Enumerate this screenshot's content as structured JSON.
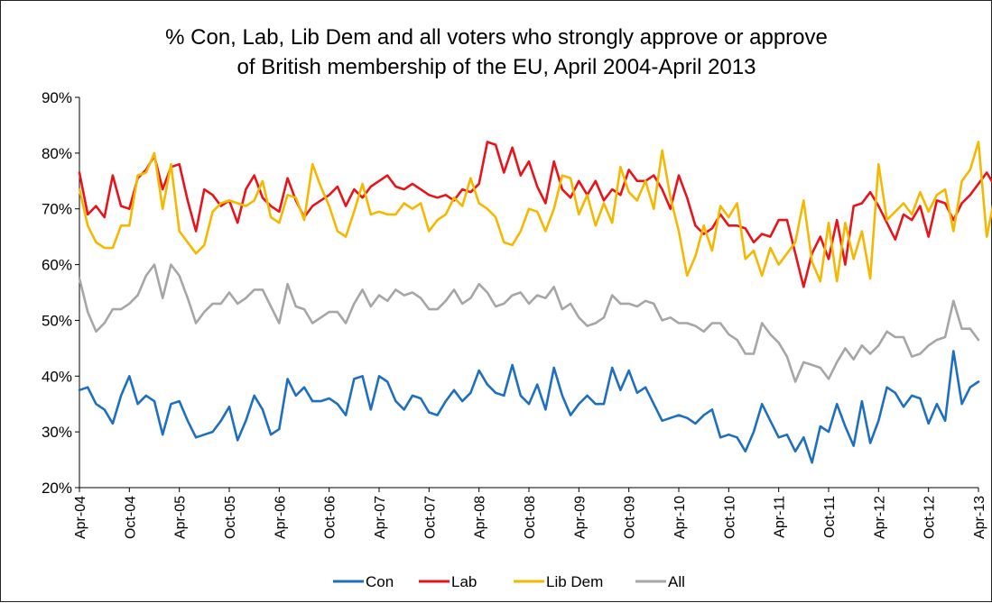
{
  "chart_data": {
    "type": "line",
    "title": [
      "% Con, Lab, Lib Dem and all voters who strongly approve or approve",
      "of British membership of the EU, April 2004-April 2013"
    ],
    "xlabel": "",
    "ylabel": "",
    "ylim": [
      20,
      90
    ],
    "yticks": [
      "20%",
      "30%",
      "40%",
      "50%",
      "60%",
      "70%",
      "80%",
      "90%"
    ],
    "ytick_values": [
      20,
      30,
      40,
      50,
      60,
      70,
      80,
      90
    ],
    "x_range_months": [
      "Apr-04",
      "Apr-13"
    ],
    "xticks": [
      "Apr-04",
      "Oct-04",
      "Apr-05",
      "Oct-05",
      "Apr-06",
      "Oct-06",
      "Apr-07",
      "Oct-07",
      "Apr-08",
      "Oct-08",
      "Apr-09",
      "Oct-09",
      "Apr-10",
      "Oct-10",
      "Apr-11",
      "Oct-11",
      "Apr-12",
      "Oct-12",
      "Apr-13"
    ],
    "grid": false,
    "legend_position": "bottom",
    "series": [
      {
        "name": "Con",
        "color": "#1f6fbf",
        "values": [
          37.5,
          38,
          35,
          34,
          31.5,
          36.5,
          40,
          35,
          36.5,
          35.5,
          29.5,
          35,
          35.5,
          32,
          29,
          29.5,
          30,
          32,
          34.5,
          28.5,
          32,
          36.5,
          34,
          29.5,
          30.5,
          39.5,
          36.5,
          38,
          35.5,
          35.5,
          36,
          35,
          33,
          39.5,
          40,
          34,
          40,
          39,
          35.5,
          34,
          36.5,
          36,
          33.5,
          33,
          35.5,
          37.5,
          35.5,
          37,
          41,
          38.5,
          37,
          36.5,
          42,
          36.5,
          35,
          38.5,
          34,
          41.5,
          36.5,
          33,
          35,
          36.5,
          35,
          35,
          41.5,
          37.5,
          41,
          37,
          38,
          35,
          32,
          32.5,
          33,
          32.5,
          31.5,
          33,
          34,
          29,
          29.5,
          29,
          26.5,
          30,
          35,
          32,
          29,
          29.5,
          26.5,
          29,
          24.5,
          31,
          30,
          35,
          31,
          27.5,
          35.5,
          28,
          32,
          38,
          37,
          34.5,
          36.5,
          36,
          31.5,
          35,
          32,
          44.5,
          35,
          38,
          39
        ]
      },
      {
        "name": "Lab",
        "color": "#e8141c",
        "values": [
          76.5,
          69,
          70.5,
          68.5,
          76,
          70.5,
          70,
          75.5,
          77,
          79.5,
          73.5,
          77.5,
          78,
          71.5,
          66,
          73.5,
          72.5,
          70.5,
          71.5,
          67.5,
          73.5,
          76,
          72,
          70.5,
          69.5,
          75.5,
          71.5,
          68.5,
          70.5,
          71.5,
          72.5,
          74,
          70.5,
          73.5,
          72,
          74,
          75,
          76,
          74,
          73.5,
          74.5,
          73.5,
          72.5,
          72,
          72.5,
          71.5,
          73.5,
          73,
          74.5,
          82,
          81.5,
          76.5,
          81,
          76,
          78.5,
          74,
          71,
          78.5,
          73.5,
          72,
          75,
          72.5,
          75,
          71.5,
          73.5,
          72.5,
          77,
          75,
          75,
          76,
          73.5,
          70,
          76,
          72,
          67,
          65.5,
          66.5,
          69,
          67,
          67,
          66.5,
          64,
          65.5,
          65,
          68,
          68,
          62,
          56,
          62,
          65,
          61,
          68,
          60,
          70.5,
          71,
          73,
          70.5,
          67.5,
          64.5,
          69,
          68,
          70.5,
          65,
          71.5,
          71,
          68,
          71,
          72.5,
          74.5,
          76.5,
          74,
          72
        ]
      },
      {
        "name": "Lib Dem",
        "color": "#f5b800",
        "values": [
          73.5,
          67,
          64,
          63,
          63,
          67,
          67,
          76,
          76.5,
          80,
          70,
          78,
          66,
          64,
          62,
          63.5,
          69.5,
          71,
          71.5,
          71,
          70.5,
          71.5,
          75,
          68.5,
          67.5,
          72.5,
          72,
          68,
          78,
          74,
          70.5,
          66,
          65,
          69.5,
          74.5,
          69,
          69.5,
          69,
          69,
          71,
          70,
          71,
          66,
          68,
          69,
          72,
          70.5,
          75.5,
          71,
          70,
          68.5,
          64,
          63.5,
          66,
          70,
          69.5,
          66,
          70,
          76,
          75.5,
          69,
          72.5,
          67,
          71,
          67.5,
          77.5,
          73,
          71.5,
          75,
          70,
          80.5,
          72,
          66,
          58,
          61.5,
          67,
          62.5,
          70.5,
          68.5,
          71,
          61,
          62.5,
          58,
          63,
          60,
          62,
          64,
          71.5,
          60.5,
          57,
          67.5,
          57,
          67.5,
          61,
          66,
          57.5,
          78,
          68,
          69.5,
          71,
          69,
          73,
          69.5,
          72.5,
          73.5,
          66,
          75,
          77,
          82,
          65,
          72.5
        ]
      },
      {
        "name": "All",
        "color": "#a6a6a6",
        "values": [
          57.5,
          51.5,
          48,
          49.5,
          52,
          52,
          53,
          54.5,
          58,
          60,
          54,
          60,
          58,
          54,
          49.5,
          51.5,
          53,
          53,
          55,
          53,
          54,
          55.5,
          55.5,
          52.5,
          49.5,
          56.5,
          52.5,
          52,
          49.5,
          50.5,
          51.5,
          51.5,
          49.5,
          53,
          55.5,
          52.5,
          54.5,
          53.5,
          55.5,
          54.5,
          55,
          54,
          52,
          52,
          53.5,
          55.5,
          53,
          54,
          56.5,
          55,
          52.5,
          53,
          54.5,
          55,
          53,
          54.5,
          54,
          56,
          52,
          53,
          50.5,
          49,
          49.5,
          50.5,
          54.5,
          53,
          53,
          52.5,
          53.5,
          53,
          50,
          50.5,
          49.5,
          49.5,
          49,
          48,
          49.5,
          49.5,
          47.5,
          46.5,
          44,
          44,
          49.5,
          47.5,
          46,
          43.5,
          39,
          42.5,
          42,
          41.5,
          39.5,
          42.5,
          45,
          43,
          45.5,
          44,
          45.5,
          48,
          47,
          47,
          43.5,
          44,
          45.5,
          46.5,
          47,
          53.5,
          48.5,
          48.5,
          46.5
        ]
      }
    ]
  }
}
